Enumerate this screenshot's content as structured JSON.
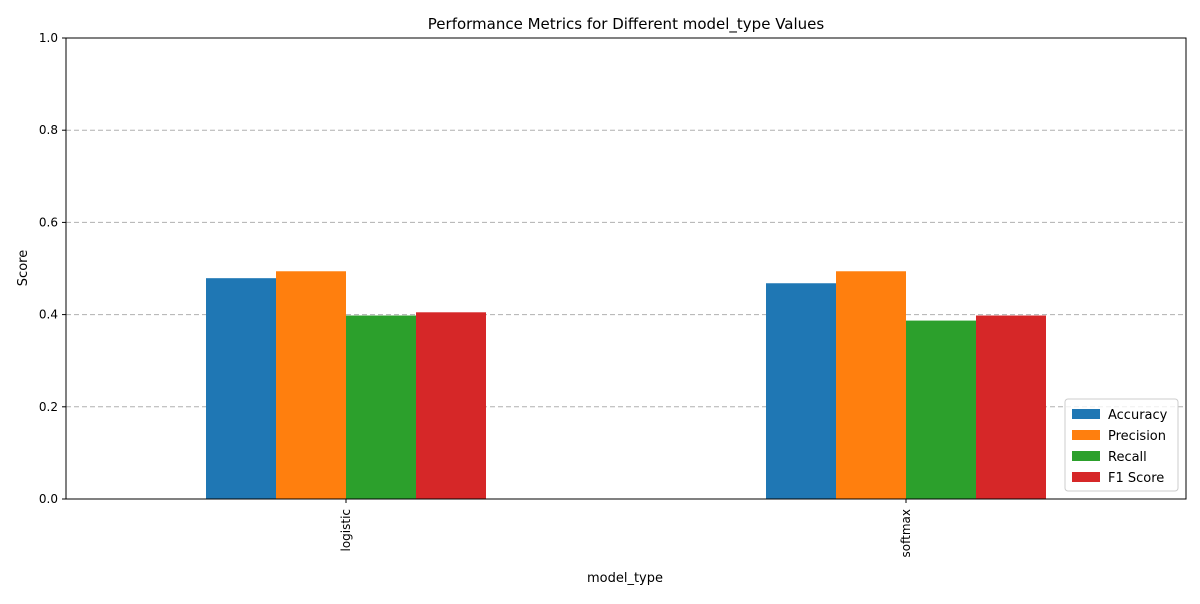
{
  "chart_data": {
    "type": "bar",
    "title": "Performance Metrics for Different model_type Values",
    "xlabel": "model_type",
    "ylabel": "Score",
    "categories": [
      "logistic",
      "softmax"
    ],
    "series": [
      {
        "name": "Accuracy",
        "color": "#1f77b4",
        "values": [
          0.479,
          0.468
        ]
      },
      {
        "name": "Precision",
        "color": "#ff7f0e",
        "values": [
          0.494,
          0.494
        ]
      },
      {
        "name": "Recall",
        "color": "#2ca02c",
        "values": [
          0.398,
          0.387
        ]
      },
      {
        "name": "F1 Score",
        "color": "#d62728",
        "values": [
          0.405,
          0.398
        ]
      }
    ],
    "ylim": [
      0,
      1.0
    ],
    "yticks": [
      "0.0",
      "0.2",
      "0.4",
      "0.6",
      "0.8",
      "1.0"
    ],
    "ytick_values": [
      0,
      0.2,
      0.4,
      0.6,
      0.8,
      1.0
    ],
    "grid": "y-dashed",
    "legend_placement": "bottom-right"
  }
}
